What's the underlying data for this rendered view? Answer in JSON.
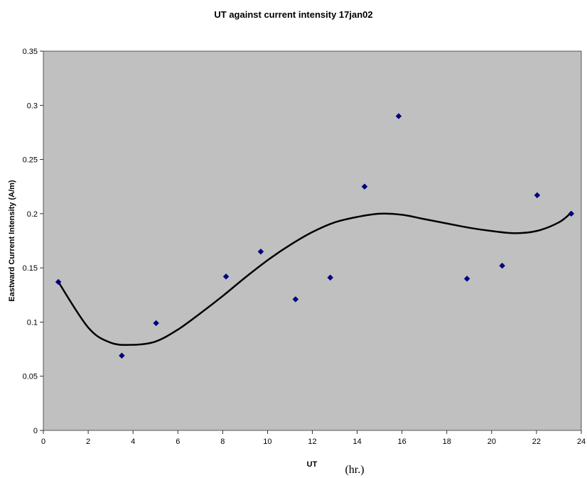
{
  "chart_data": {
    "type": "scatter",
    "title": "UT against current intensity 17jan02",
    "xlabel": "UT",
    "xlabel_unit": "(hr.)",
    "ylabel": "Eastward Current Intensity (A/m)",
    "xlim": [
      0,
      24
    ],
    "ylim": [
      0,
      0.35
    ],
    "x_ticks": [
      0,
      2,
      4,
      6,
      8,
      10,
      12,
      14,
      16,
      18,
      20,
      22,
      24
    ],
    "y_ticks": [
      0,
      0.05,
      0.1,
      0.15,
      0.2,
      0.25,
      0.3,
      0.35
    ],
    "y_tick_labels": [
      "0",
      "0.05",
      "0.1",
      "0.15",
      "0.2",
      "0.25",
      "0.3",
      "0.35"
    ],
    "grid": false,
    "plot_background": "#c0c0c0",
    "marker_color": "#000080",
    "trendline_color": "#000000",
    "points": [
      {
        "x": 0.67,
        "y": 0.137
      },
      {
        "x": 3.5,
        "y": 0.069
      },
      {
        "x": 5.03,
        "y": 0.099
      },
      {
        "x": 8.15,
        "y": 0.142
      },
      {
        "x": 9.7,
        "y": 0.165
      },
      {
        "x": 11.25,
        "y": 0.121
      },
      {
        "x": 12.8,
        "y": 0.141
      },
      {
        "x": 14.33,
        "y": 0.225
      },
      {
        "x": 15.85,
        "y": 0.29
      },
      {
        "x": 18.9,
        "y": 0.14
      },
      {
        "x": 20.47,
        "y": 0.152
      },
      {
        "x": 22.03,
        "y": 0.217
      },
      {
        "x": 23.55,
        "y": 0.2
      }
    ],
    "trendline": {
      "type": "polynomial",
      "points": [
        {
          "x": 0.67,
          "y": 0.137
        },
        {
          "x": 2.0,
          "y": 0.095
        },
        {
          "x": 3.0,
          "y": 0.081
        },
        {
          "x": 4.0,
          "y": 0.079
        },
        {
          "x": 5.0,
          "y": 0.082
        },
        {
          "x": 6.0,
          "y": 0.093
        },
        {
          "x": 7.0,
          "y": 0.108
        },
        {
          "x": 8.0,
          "y": 0.124
        },
        {
          "x": 9.0,
          "y": 0.141
        },
        {
          "x": 10.0,
          "y": 0.157
        },
        {
          "x": 11.0,
          "y": 0.171
        },
        {
          "x": 12.0,
          "y": 0.183
        },
        {
          "x": 13.0,
          "y": 0.192
        },
        {
          "x": 14.0,
          "y": 0.197
        },
        {
          "x": 15.0,
          "y": 0.2
        },
        {
          "x": 16.0,
          "y": 0.199
        },
        {
          "x": 17.0,
          "y": 0.195
        },
        {
          "x": 18.0,
          "y": 0.191
        },
        {
          "x": 19.0,
          "y": 0.187
        },
        {
          "x": 20.0,
          "y": 0.184
        },
        {
          "x": 21.0,
          "y": 0.182
        },
        {
          "x": 22.0,
          "y": 0.184
        },
        {
          "x": 23.0,
          "y": 0.192
        },
        {
          "x": 23.55,
          "y": 0.201
        }
      ]
    }
  }
}
